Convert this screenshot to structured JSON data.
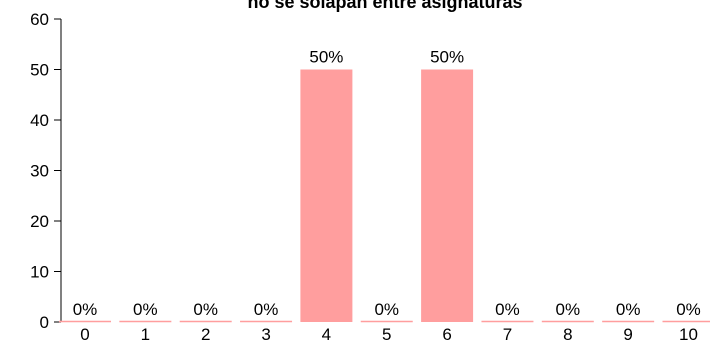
{
  "chart_data": {
    "type": "bar",
    "title": "no se solapan entre asignaturas",
    "xlabel": "",
    "ylabel": "",
    "categories": [
      "0",
      "1",
      "2",
      "3",
      "4",
      "5",
      "6",
      "7",
      "8",
      "9",
      "10"
    ],
    "values": [
      0,
      0,
      0,
      0,
      50,
      0,
      50,
      0,
      0,
      0,
      0
    ],
    "data_labels": [
      "0%",
      "0%",
      "0%",
      "0%",
      "50%",
      "0%",
      "50%",
      "0%",
      "0%",
      "0%",
      "0%"
    ],
    "ylim": [
      0,
      60
    ],
    "yticks": [
      0,
      10,
      20,
      30,
      40,
      50,
      60
    ],
    "bar_color": "#ff9e9e",
    "grid": false,
    "legend": "none"
  }
}
